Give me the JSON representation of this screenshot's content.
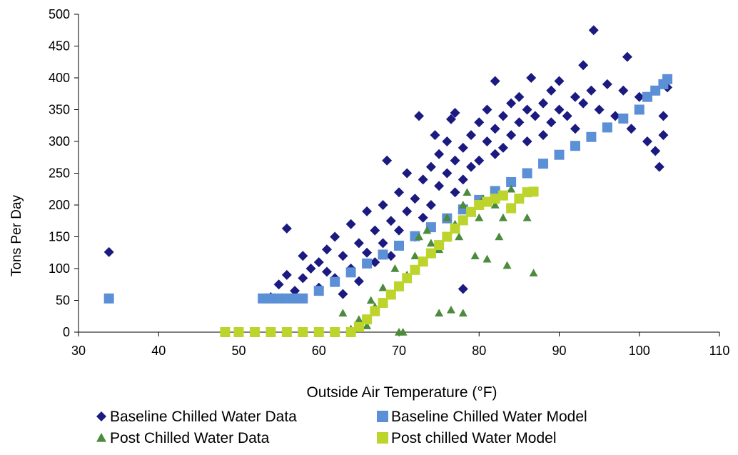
{
  "chart_data": {
    "type": "scatter",
    "xlabel": "Outside Air Temperature (°F)",
    "ylabel": "Tons Per Day",
    "xlim": [
      30,
      110
    ],
    "ylim": [
      0,
      500
    ],
    "xticks": [
      "30",
      "40",
      "50",
      "60",
      "70",
      "80",
      "90",
      "100",
      "110"
    ],
    "yticks": [
      "0",
      "50",
      "100",
      "150",
      "200",
      "250",
      "300",
      "350",
      "400",
      "450",
      "500"
    ],
    "grid": false,
    "legend_position": "bottom",
    "series": [
      {
        "name": "Baseline Chilled Water Data",
        "marker": "diamond",
        "color": "#1a1a80",
        "points": [
          [
            33.8,
            126
          ],
          [
            56,
            163
          ],
          [
            54,
            55
          ],
          [
            55,
            75
          ],
          [
            56,
            90
          ],
          [
            57,
            65
          ],
          [
            58,
            120
          ],
          [
            58,
            85
          ],
          [
            59,
            100
          ],
          [
            60,
            70
          ],
          [
            60,
            110
          ],
          [
            61,
            95
          ],
          [
            61,
            130
          ],
          [
            62,
            85
          ],
          [
            62,
            150
          ],
          [
            63,
            120
          ],
          [
            63,
            60
          ],
          [
            64,
            100
          ],
          [
            64,
            170
          ],
          [
            65,
            140
          ],
          [
            65,
            80
          ],
          [
            66,
            125
          ],
          [
            66,
            190
          ],
          [
            67,
            160
          ],
          [
            67,
            110
          ],
          [
            68,
            200
          ],
          [
            68,
            140
          ],
          [
            68.5,
            270
          ],
          [
            69,
            175
          ],
          [
            69,
            120
          ],
          [
            70,
            220
          ],
          [
            70,
            160
          ],
          [
            71,
            250
          ],
          [
            71,
            190
          ],
          [
            72,
            210
          ],
          [
            72,
            150
          ],
          [
            72.5,
            340
          ],
          [
            73,
            240
          ],
          [
            73,
            180
          ],
          [
            74,
            260
          ],
          [
            74,
            200
          ],
          [
            74.5,
            310
          ],
          [
            75,
            230
          ],
          [
            75,
            280
          ],
          [
            76,
            250
          ],
          [
            76,
            300
          ],
          [
            76.5,
            335
          ],
          [
            77,
            270
          ],
          [
            77,
            220
          ],
          [
            77,
            345
          ],
          [
            78,
            290
          ],
          [
            78,
            240
          ],
          [
            78,
            68
          ],
          [
            79,
            310
          ],
          [
            79,
            260
          ],
          [
            80,
            330
          ],
          [
            80,
            270
          ],
          [
            81,
            300
          ],
          [
            81,
            350
          ],
          [
            82,
            320
          ],
          [
            82,
            280
          ],
          [
            82,
            395
          ],
          [
            83,
            340
          ],
          [
            83,
            290
          ],
          [
            84,
            360
          ],
          [
            84,
            310
          ],
          [
            85,
            330
          ],
          [
            85,
            370
          ],
          [
            86,
            350
          ],
          [
            86,
            300
          ],
          [
            86.5,
            400
          ],
          [
            87,
            340
          ],
          [
            88,
            360
          ],
          [
            88,
            310
          ],
          [
            89,
            380
          ],
          [
            89,
            330
          ],
          [
            90,
            350
          ],
          [
            90,
            395
          ],
          [
            91,
            340
          ],
          [
            92,
            370
          ],
          [
            92,
            320
          ],
          [
            93,
            420
          ],
          [
            93,
            360
          ],
          [
            94,
            380
          ],
          [
            94.3,
            475
          ],
          [
            95,
            350
          ],
          [
            96,
            390
          ],
          [
            97,
            340
          ],
          [
            98,
            380
          ],
          [
            98.5,
            433
          ],
          [
            99,
            320
          ],
          [
            100,
            370
          ],
          [
            101,
            300
          ],
          [
            102,
            285
          ],
          [
            102.5,
            260
          ],
          [
            103,
            340
          ],
          [
            103,
            310
          ],
          [
            103.5,
            385
          ]
        ]
      },
      {
        "name": "Baseline Chilled Water Model",
        "marker": "square",
        "color": "#5b8fd6",
        "points": [
          [
            33.8,
            53
          ],
          [
            53,
            53
          ],
          [
            54,
            53
          ],
          [
            55,
            53
          ],
          [
            56,
            53
          ],
          [
            57,
            53
          ],
          [
            58,
            53
          ],
          [
            60,
            65
          ],
          [
            62,
            79
          ],
          [
            64,
            94
          ],
          [
            66,
            108
          ],
          [
            68,
            122
          ],
          [
            70,
            136
          ],
          [
            72,
            151
          ],
          [
            74,
            165
          ],
          [
            76,
            179
          ],
          [
            78,
            193
          ],
          [
            80,
            208
          ],
          [
            82,
            222
          ],
          [
            84,
            236
          ],
          [
            86,
            250
          ],
          [
            88,
            265
          ],
          [
            90,
            279
          ],
          [
            92,
            293
          ],
          [
            94,
            307
          ],
          [
            96,
            322
          ],
          [
            98,
            336
          ],
          [
            100,
            350
          ],
          [
            101,
            370
          ],
          [
            102,
            380
          ],
          [
            103,
            390
          ],
          [
            103.5,
            398
          ]
        ]
      },
      {
        "name": "Post Chilled Water Data",
        "marker": "triangle",
        "color": "#4c8b3c",
        "points": [
          [
            63,
            30
          ],
          [
            64,
            5
          ],
          [
            65,
            20
          ],
          [
            66,
            10
          ],
          [
            66.5,
            50
          ],
          [
            67,
            40
          ],
          [
            68,
            70
          ],
          [
            69,
            60
          ],
          [
            69.5,
            100
          ],
          [
            70,
            0
          ],
          [
            70.5,
            0
          ],
          [
            71,
            90
          ],
          [
            72,
            120
          ],
          [
            72.5,
            150
          ],
          [
            73,
            110
          ],
          [
            73.5,
            160
          ],
          [
            74,
            140
          ],
          [
            75,
            30
          ],
          [
            75,
            130
          ],
          [
            76,
            180
          ],
          [
            76.5,
            35
          ],
          [
            77,
            170
          ],
          [
            77.5,
            150
          ],
          [
            78,
            200
          ],
          [
            78,
            30
          ],
          [
            78.5,
            220
          ],
          [
            79,
            190
          ],
          [
            79.5,
            120
          ],
          [
            80,
            180
          ],
          [
            80.5,
            210
          ],
          [
            81,
            115
          ],
          [
            82,
            200
          ],
          [
            82.5,
            150
          ],
          [
            83,
            180
          ],
          [
            83.5,
            105
          ],
          [
            84,
            225
          ],
          [
            85,
            210
          ],
          [
            86,
            180
          ],
          [
            86.8,
            93
          ]
        ]
      },
      {
        "name": "Post chilled Water Model",
        "marker": "square",
        "color": "#bcd42c",
        "points": [
          [
            48.3,
            0
          ],
          [
            50,
            0
          ],
          [
            52,
            0
          ],
          [
            54,
            0
          ],
          [
            56,
            0
          ],
          [
            58,
            0
          ],
          [
            60,
            0
          ],
          [
            62,
            0
          ],
          [
            64,
            0
          ],
          [
            65,
            8
          ],
          [
            66,
            20
          ],
          [
            67,
            33
          ],
          [
            68,
            46
          ],
          [
            69,
            59
          ],
          [
            70,
            72
          ],
          [
            71,
            85
          ],
          [
            72,
            98
          ],
          [
            73,
            111
          ],
          [
            74,
            124
          ],
          [
            75,
            137
          ],
          [
            76,
            150
          ],
          [
            77,
            163
          ],
          [
            78,
            176
          ],
          [
            79,
            189
          ],
          [
            80,
            200
          ],
          [
            81,
            205
          ],
          [
            82,
            210
          ],
          [
            83,
            215
          ],
          [
            84,
            195
          ],
          [
            85,
            210
          ],
          [
            86,
            220
          ],
          [
            86.8,
            221
          ]
        ]
      }
    ]
  }
}
